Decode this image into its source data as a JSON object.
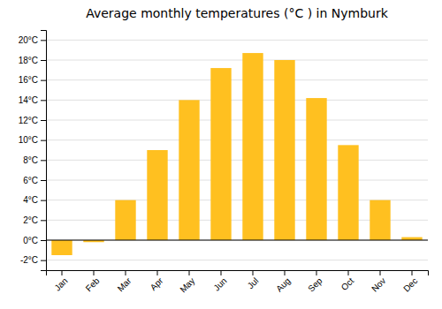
{
  "chart_data": {
    "type": "bar",
    "title": "Average monthly temperatures (°C ) in Nymburk",
    "categories": [
      "Jan",
      "Feb",
      "Mar",
      "Apr",
      "May",
      "Jun",
      "Jul",
      "Aug",
      "Sep",
      "Oct",
      "Nov",
      "Dec"
    ],
    "values": [
      -1.5,
      -0.2,
      4.0,
      9.0,
      14.0,
      17.2,
      18.7,
      18.0,
      14.2,
      9.5,
      4.0,
      0.3
    ],
    "color": "#FFC020",
    "ylim": [
      -3,
      21
    ],
    "yticks": [
      {
        "value": -2,
        "label": "-2°C"
      },
      {
        "value": 0,
        "label": "0°C"
      },
      {
        "value": 2,
        "label": "2°C"
      },
      {
        "value": 4,
        "label": "4°C"
      },
      {
        "value": 6,
        "label": "6°C"
      },
      {
        "value": 8,
        "label": "8°C"
      },
      {
        "value": 10,
        "label": "10°C"
      },
      {
        "value": 12,
        "label": "12°C"
      },
      {
        "value": 14,
        "label": "14°C"
      },
      {
        "value": 16,
        "label": "16°C"
      },
      {
        "value": 18,
        "label": "18°C"
      },
      {
        "value": 20,
        "label": "20°C"
      }
    ],
    "grid": true
  }
}
